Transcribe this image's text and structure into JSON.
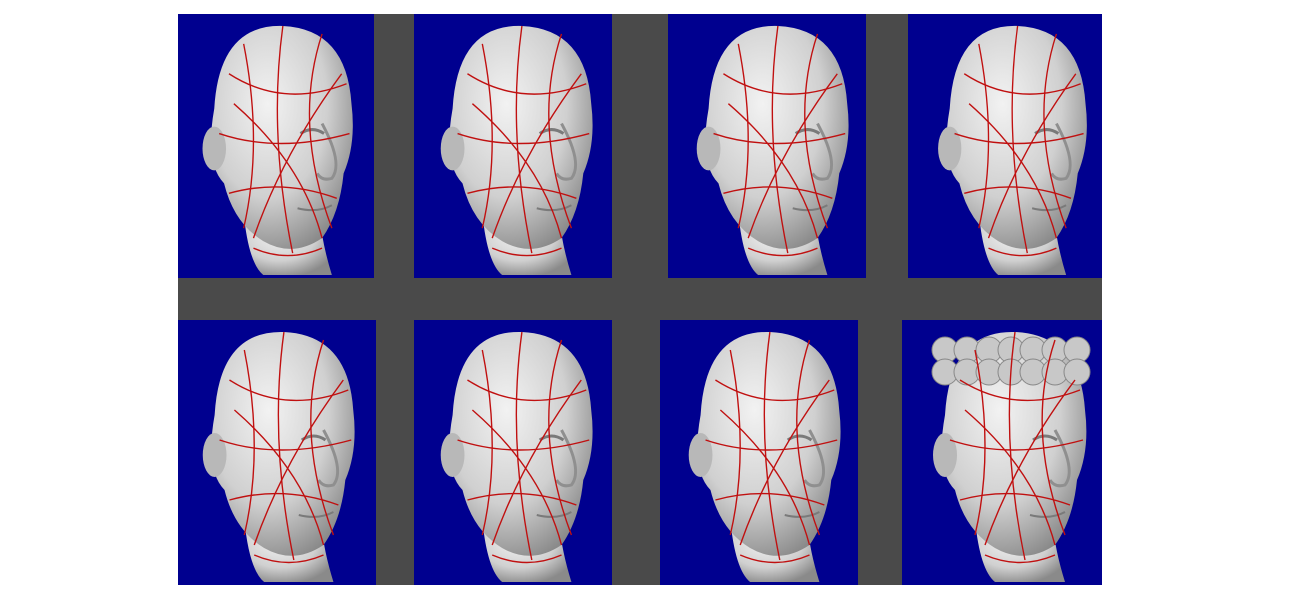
{
  "colors": {
    "page_background": "#ffffff",
    "frame_gray": "#4a4a4a",
    "panel_blue": "#00008f",
    "surface_gray": "#d0d0d0",
    "curve_red": "#c01010"
  },
  "panels": [
    {
      "subject": "head-scan-rough-hair"
    },
    {
      "subject": "head-scan-smooth"
    },
    {
      "subject": "head-scan-smooth"
    },
    {
      "subject": "head-scan-bald"
    },
    {
      "subject": "head-scan-bald"
    },
    {
      "subject": "head-scan-smooth"
    },
    {
      "subject": "head-scan-statue"
    },
    {
      "subject": "head-scan-curly-hair-statue"
    }
  ]
}
